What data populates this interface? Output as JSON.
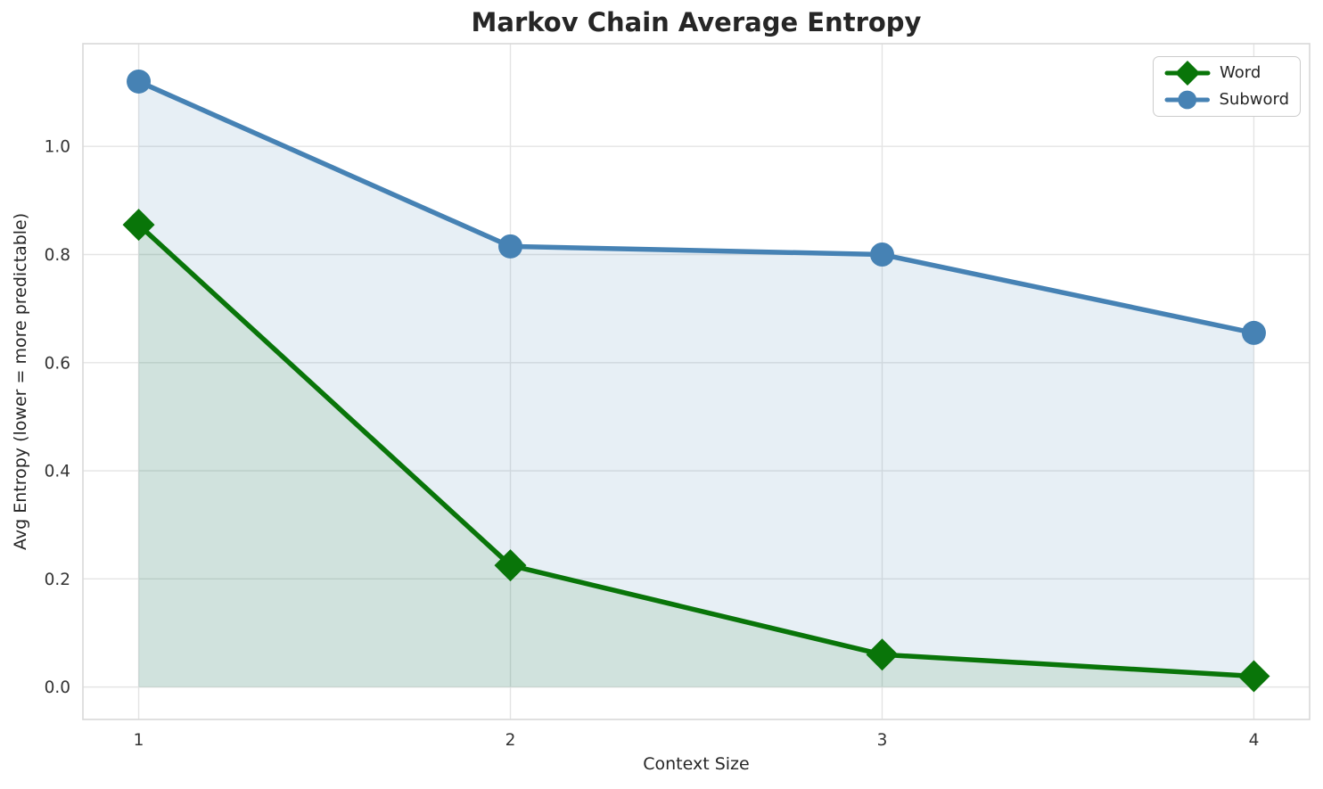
{
  "chart_data": {
    "type": "line",
    "title": "Markov Chain Average Entropy",
    "xlabel": "Context Size",
    "ylabel": "Avg Entropy (lower = more predictable)",
    "x": [
      1,
      2,
      3,
      4
    ],
    "series": [
      {
        "name": "Word",
        "marker": "diamond",
        "color": "#097509",
        "fill_alpha": 0.1,
        "values": [
          0.855,
          0.225,
          0.06,
          0.02
        ]
      },
      {
        "name": "Subword",
        "marker": "circle",
        "color": "#4682b4",
        "fill_alpha": 0.13,
        "values": [
          1.12,
          0.815,
          0.8,
          0.655
        ]
      }
    ],
    "fill_to_zero": true,
    "xlim": [
      0.85,
      4.15
    ],
    "ylim": [
      -0.06,
      1.19
    ],
    "xticks": [
      1,
      2,
      3,
      4
    ],
    "yticks": [
      0.0,
      0.2,
      0.4,
      0.6,
      0.8,
      1.0
    ],
    "grid": true,
    "legend_position": "upper right",
    "colors": {
      "grid": "#e4e4e4",
      "spine": "#d9d9d9",
      "text": "#262626",
      "tick_text": "#333333",
      "background": "#ffffff"
    }
  }
}
